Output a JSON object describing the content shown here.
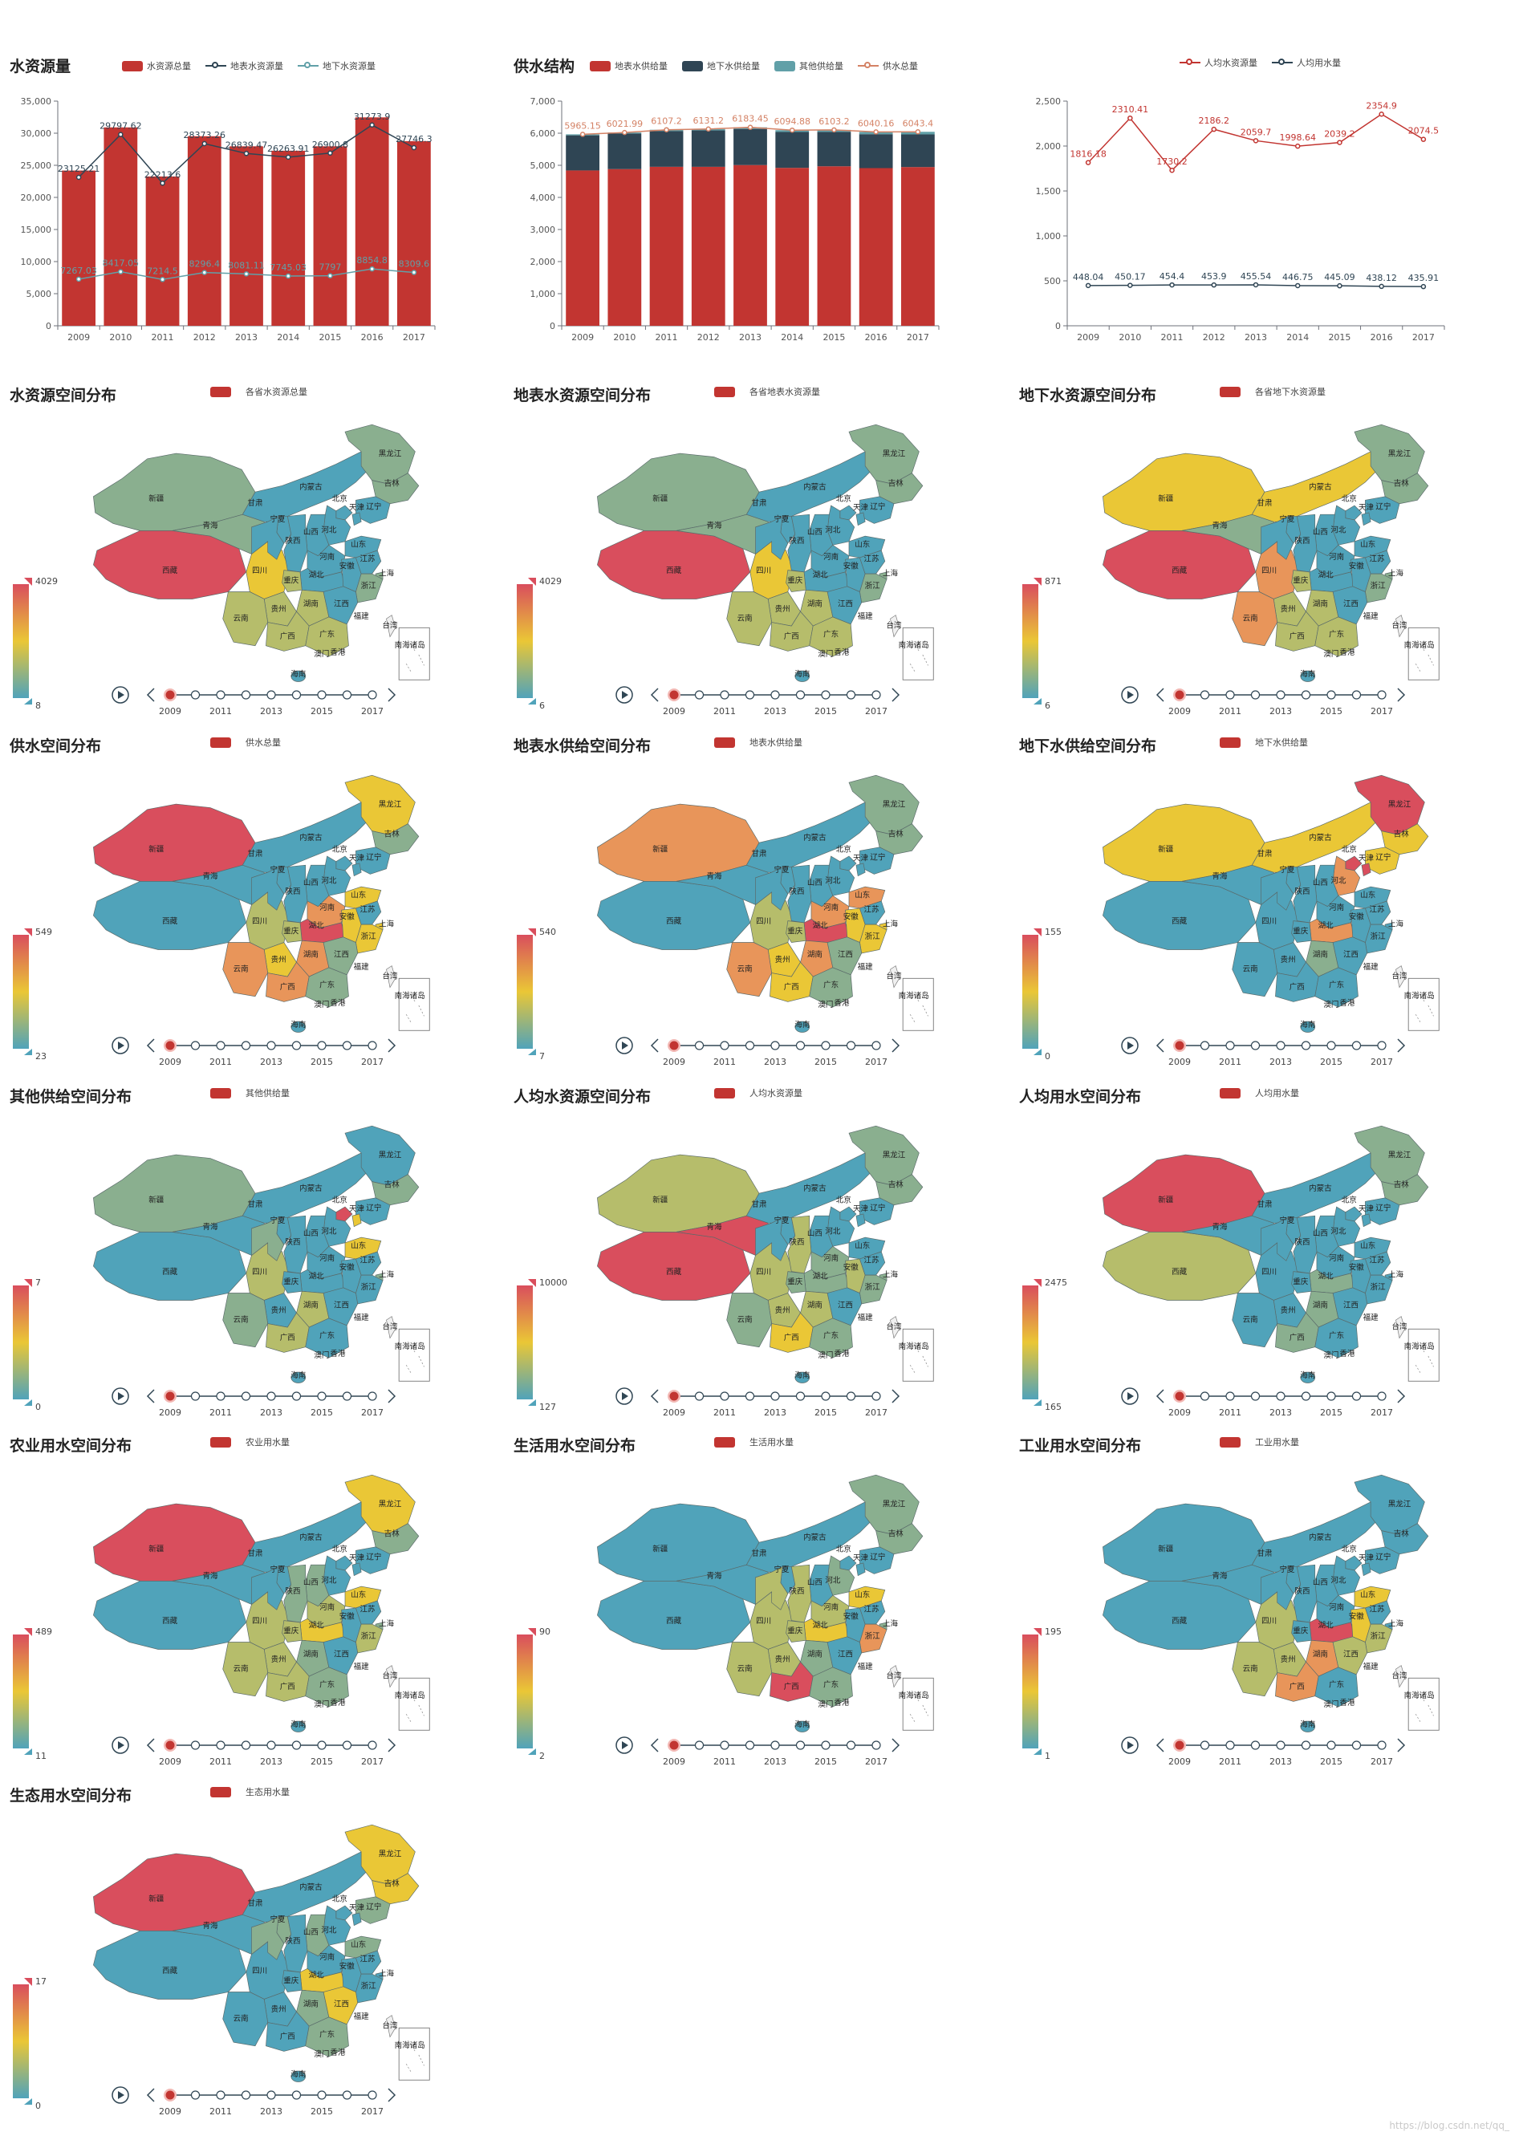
{
  "colors": {
    "red": "#c23531",
    "navy": "#2f4554",
    "teal": "#61a0a8",
    "orange": "#d48265",
    "vm_high": "#d94e5d",
    "vm_mid": "#eac736",
    "vm_low": "#50a3ba"
  },
  "chart_data": [
    {
      "id": "water_resources",
      "type": "bar",
      "title": "水资源量",
      "categories": [
        "2009",
        "2010",
        "2011",
        "2012",
        "2013",
        "2014",
        "2015",
        "2016",
        "2017"
      ],
      "series": [
        {
          "name": "水资源总量",
          "kind": "bar",
          "color": "#c23531",
          "values": [
            24180.2,
            30906.4,
            23256.7,
            29528.8,
            27957.9,
            27266.9,
            27962.6,
            32466.4,
            28761.2
          ]
        },
        {
          "name": "地表水资源量",
          "kind": "line",
          "color": "#2f4554",
          "values": [
            23125.21,
            29797.62,
            22213.6,
            28373.26,
            26839.47,
            26263.91,
            26900.8,
            31273.9,
            27746.3
          ]
        },
        {
          "name": "地下水资源量",
          "kind": "line",
          "color": "#61a0a8",
          "values": [
            7267.03,
            8417.05,
            7214.5,
            8296.4,
            8081.11,
            7745.03,
            7797,
            8854.8,
            8309.6
          ]
        }
      ],
      "ylim": [
        0,
        35000
      ],
      "yticks": [
        0,
        5000,
        10000,
        15000,
        20000,
        25000,
        30000,
        35000
      ]
    },
    {
      "id": "water_supply",
      "type": "bar",
      "title": "供水结构",
      "stacked": true,
      "categories": [
        "2009",
        "2010",
        "2011",
        "2012",
        "2013",
        "2014",
        "2015",
        "2016",
        "2017"
      ],
      "series": [
        {
          "name": "地表水供给量",
          "kind": "bar",
          "color": "#c23531",
          "values": [
            4839.5,
            4881.6,
            4953.3,
            4952.8,
            5007.3,
            4920.5,
            4969.5,
            4912.4,
            4945.5
          ]
        },
        {
          "name": "地下水供给量",
          "kind": "bar",
          "color": "#2f4554",
          "values": [
            1094.5,
            1107.3,
            1109.1,
            1133.8,
            1126.2,
            1116.9,
            1069.2,
            1057.0,
            1016.7
          ]
        },
        {
          "name": "其他供给量",
          "kind": "bar",
          "color": "#61a0a8",
          "values": [
            31.2,
            33.1,
            44.8,
            44.6,
            49.9,
            57.5,
            64.5,
            70.8,
            81.2
          ]
        },
        {
          "name": "供水总量",
          "kind": "line",
          "color": "#d48265",
          "values": [
            5965.15,
            6021.99,
            6107.2,
            6131.2,
            6183.45,
            6094.88,
            6103.2,
            6040.16,
            6043.4
          ]
        }
      ],
      "ylim": [
        0,
        7000
      ],
      "yticks": [
        0,
        1000,
        2000,
        3000,
        4000,
        5000,
        6000,
        7000
      ]
    },
    {
      "id": "per_capita",
      "type": "line",
      "title": "",
      "categories": [
        "2009",
        "2010",
        "2011",
        "2012",
        "2013",
        "2014",
        "2015",
        "2016",
        "2017"
      ],
      "series": [
        {
          "name": "人均水资源量",
          "kind": "line",
          "color": "#c23531",
          "values": [
            1816.18,
            2310.41,
            1730.2,
            2186.2,
            2059.7,
            1998.64,
            2039.2,
            2354.9,
            2074.5
          ]
        },
        {
          "name": "人均用水量",
          "kind": "line",
          "color": "#2f4554",
          "values": [
            448.04,
            450.17,
            454.4,
            453.9,
            455.54,
            446.75,
            445.09,
            438.12,
            435.91
          ]
        }
      ],
      "ylim": [
        0,
        2500
      ],
      "yticks": [
        0,
        500,
        1000,
        1500,
        2000,
        2500
      ]
    }
  ],
  "maps": [
    {
      "title": "水资源空间分布",
      "legend": "各省水资源总量",
      "max": "4029",
      "min": "8",
      "scheme": "water"
    },
    {
      "title": "地表水资源空间分布",
      "legend": "各省地表水资源量",
      "max": "4029",
      "min": "6",
      "scheme": "water"
    },
    {
      "title": "地下水资源空间分布",
      "legend": "各省地下水资源量",
      "max": "871",
      "min": "6",
      "scheme": "ground"
    },
    {
      "title": "供水空间分布",
      "legend": "供水总量",
      "max": "549",
      "min": "23",
      "scheme": "supply"
    },
    {
      "title": "地表水供给空间分布",
      "legend": "地表水供给量",
      "max": "540",
      "min": "7",
      "scheme": "supply2"
    },
    {
      "title": "地下水供给空间分布",
      "legend": "地下水供给量",
      "max": "155",
      "min": "0",
      "scheme": "gsupply"
    },
    {
      "title": "其他供给空间分布",
      "legend": "其他供给量",
      "max": "7",
      "min": "0",
      "scheme": "other"
    },
    {
      "title": "人均水资源空间分布",
      "legend": "人均水资源量",
      "max": "10000",
      "min": "127",
      "scheme": "percap"
    },
    {
      "title": "人均用水空间分布",
      "legend": "人均用水量",
      "max": "2475",
      "min": "165",
      "scheme": "pcuse"
    },
    {
      "title": "农业用水空间分布",
      "legend": "农业用水量",
      "max": "489",
      "min": "11",
      "scheme": "agri"
    },
    {
      "title": "生活用水空间分布",
      "legend": "生活用水量",
      "max": "90",
      "min": "2",
      "scheme": "life"
    },
    {
      "title": "工业用水空间分布",
      "legend": "工业用水量",
      "max": "195",
      "min": "1",
      "scheme": "ind"
    },
    {
      "title": "生态用水空间分布",
      "legend": "生态用水量",
      "max": "17",
      "min": "0",
      "scheme": "eco"
    }
  ],
  "province_labels": [
    "新疆",
    "西藏",
    "青海",
    "四川",
    "内蒙古",
    "黑龙江",
    "吉林",
    "辽宁",
    "北京",
    "天津",
    "河北",
    "山西",
    "山东",
    "宁夏",
    "甘肃",
    "陕西",
    "河南",
    "湖北",
    "安徽",
    "江苏",
    "上海",
    "浙江",
    "湖南",
    "江西",
    "重庆",
    "贵州",
    "云南",
    "广西",
    "广东",
    "福建",
    "台湾",
    "香港",
    "澳门",
    "海南",
    "南海诸岛"
  ],
  "timeline_labels": [
    "2009",
    "2011",
    "2013",
    "2015",
    "2017"
  ],
  "watermark": "https://blog.csdn.net/qq_"
}
